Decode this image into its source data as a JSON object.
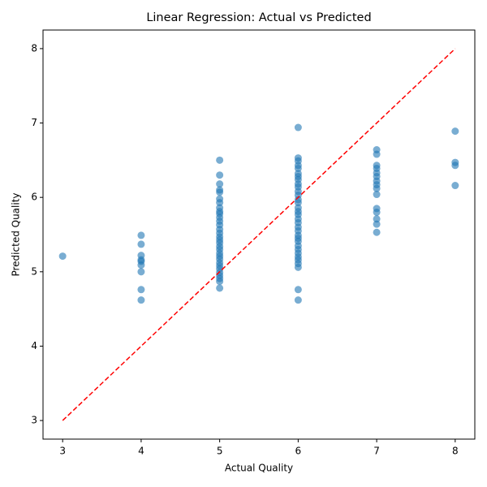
{
  "chart_data": {
    "type": "scatter",
    "title": "Linear Regression: Actual vs Predicted",
    "xlabel": "Actual Quality",
    "ylabel": "Predicted Quality",
    "xlim": [
      2.75,
      8.25
    ],
    "ylim": [
      2.75,
      8.25
    ],
    "xticks": [
      3,
      4,
      5,
      6,
      7,
      8
    ],
    "yticks": [
      3,
      4,
      5,
      6,
      7,
      8
    ],
    "series": [
      {
        "kind": "scatter",
        "color": "#1f77b4",
        "opacity": 0.6,
        "x": [
          3,
          4,
          4,
          4,
          4,
          4,
          4,
          4,
          4,
          4,
          5,
          5,
          5,
          5,
          5,
          5,
          5,
          5,
          5,
          5,
          5,
          5,
          5,
          5,
          5,
          5,
          5,
          5,
          5,
          5,
          5,
          5,
          5,
          5,
          5,
          5,
          5,
          5,
          5,
          5,
          5,
          6,
          6,
          6,
          6,
          6,
          6,
          6,
          6,
          6,
          6,
          6,
          6,
          6,
          6,
          6,
          6,
          6,
          6,
          6,
          6,
          6,
          6,
          6,
          6,
          6,
          6,
          6,
          6,
          6,
          6,
          6,
          6,
          6,
          7,
          7,
          7,
          7,
          7,
          7,
          7,
          7,
          7,
          7,
          7,
          7,
          7,
          7,
          7,
          8,
          8,
          8,
          8
        ],
        "y": [
          5.21,
          5.49,
          5.37,
          5.22,
          5.16,
          5.14,
          5.09,
          5.0,
          4.76,
          4.62,
          6.5,
          6.3,
          6.18,
          6.1,
          6.07,
          5.98,
          5.93,
          5.86,
          5.81,
          5.78,
          5.73,
          5.68,
          5.63,
          5.57,
          5.52,
          5.47,
          5.43,
          5.39,
          5.34,
          5.3,
          5.25,
          5.21,
          5.17,
          5.12,
          5.08,
          5.04,
          4.99,
          4.95,
          4.91,
          4.87,
          4.78,
          6.94,
          6.53,
          6.49,
          6.43,
          6.39,
          6.32,
          6.28,
          6.24,
          6.18,
          6.14,
          6.08,
          6.03,
          5.97,
          5.93,
          5.86,
          5.81,
          5.77,
          5.71,
          5.66,
          5.6,
          5.55,
          5.49,
          5.45,
          5.41,
          5.35,
          5.3,
          5.25,
          5.2,
          5.16,
          5.11,
          5.06,
          4.76,
          4.62,
          6.64,
          6.58,
          6.43,
          6.39,
          6.33,
          6.28,
          6.22,
          6.17,
          6.12,
          6.04,
          5.85,
          5.8,
          5.71,
          5.64,
          5.53,
          6.89,
          6.47,
          6.43,
          6.16
        ]
      },
      {
        "kind": "line",
        "color": "red",
        "dashed": true,
        "x": [
          3,
          8
        ],
        "y": [
          3,
          8
        ]
      }
    ]
  }
}
